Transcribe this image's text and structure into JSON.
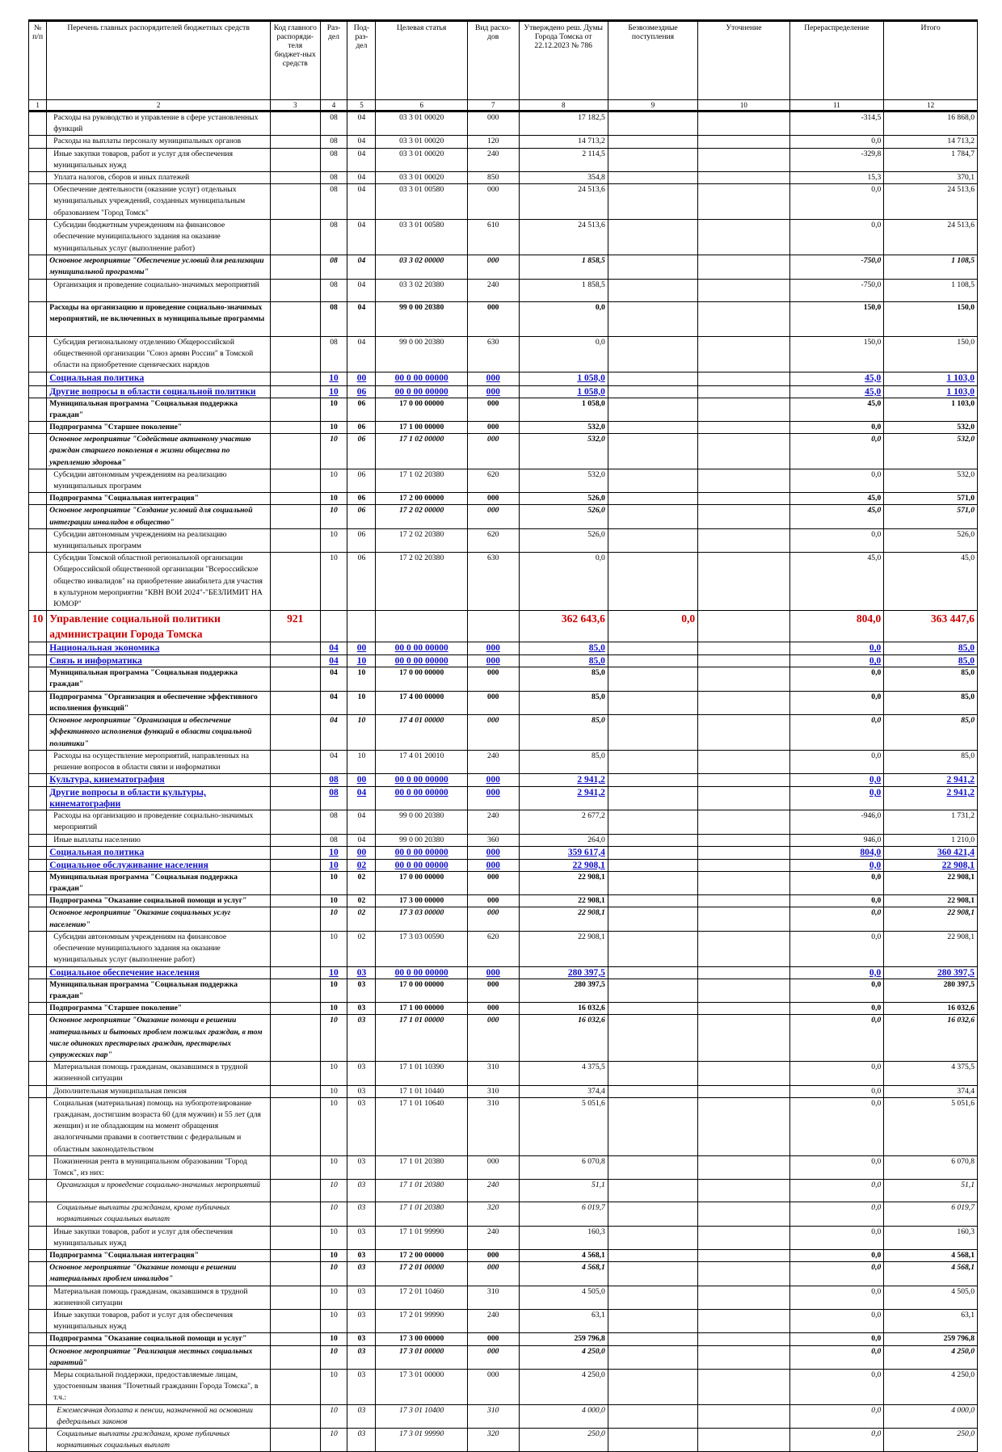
{
  "header": [
    "№ п/п",
    "Перечень главных распорядителей бюджетных средств",
    "Код главного распоряди-теля бюджет-ных средств",
    "Раз-дел",
    "Под-раз-дел",
    "Целевая статья",
    "Вид расхо-дов",
    "Утверждено реш. Думы Города Томска от 22.12.2023 № 786",
    "Безвозмездные поступления",
    "Уточнение",
    "Перераспределение",
    "Итого"
  ],
  "col_numbers": [
    "1",
    "2",
    "3",
    "4",
    "5",
    "6",
    "7",
    "8",
    "9",
    "10",
    "11",
    "12"
  ],
  "rows": [
    {
      "s": "n",
      "h": 26,
      "name": "Расходы на руководство и управление в сфере установленных функций",
      "rz": "08",
      "prz": "04",
      "cs": "03 3 01 00020",
      "vr": "000",
      "utv": "17 182,5",
      "pere": "-314,5",
      "itog": "16 868,0"
    },
    {
      "s": "n",
      "h": 13,
      "name": "Расходы на выплаты персоналу муниципальных органов",
      "rz": "08",
      "prz": "04",
      "cs": "03 3 01 00020",
      "vr": "120",
      "utv": "14 713,2",
      "pere": "0,0",
      "itog": "14 713,2"
    },
    {
      "s": "n",
      "h": 26,
      "name": "Иные закупки товаров, работ и услуг для обеспечения муниципальных нужд",
      "rz": "08",
      "prz": "04",
      "cs": "03 3 01 00020",
      "vr": "240",
      "utv": "2 114,5",
      "pere": "-329,8",
      "itog": "1 784,7"
    },
    {
      "s": "n",
      "h": 13,
      "name": "Уплата налогов, сборов и иных платежей",
      "rz": "08",
      "prz": "04",
      "cs": "03 3 01 00020",
      "vr": "850",
      "utv": "354,8",
      "pere": "15,3",
      "itog": "370,1"
    },
    {
      "s": "n",
      "h": 43,
      "name": "Обеспечение деятельности (оказание услуг) отдельных муниципальных учреждений, созданных муниципальным образованием \"Город Томск\"",
      "rz": "08",
      "prz": "04",
      "cs": "03 3 01 00580",
      "vr": "000",
      "utv": "24 513,6",
      "pere": "0,0",
      "itog": "24 513,6"
    },
    {
      "s": "n",
      "h": 43,
      "name": "Субсидии бюджетным учреждениям на финансовое обеспечение муниципального задания на оказание муниципальных услуг (выполнение работ)",
      "rz": "08",
      "prz": "04",
      "cs": "03 3 01 00580",
      "vr": "610",
      "utv": "24 513,6",
      "pere": "0,0",
      "itog": "24 513,6"
    },
    {
      "s": "bi",
      "h": 28,
      "name": "Основное мероприятие \"Обеспечение условий для реализации муниципальной программы\"",
      "rz": "08",
      "prz": "04",
      "cs": "03 3 02 00000",
      "vr": "000",
      "utv": "1 858,5",
      "pere": "-750,0",
      "itog": "1 108,5"
    },
    {
      "s": "n",
      "h": 27,
      "name": "Организация и проведение социально-значимых мероприятий",
      "rz": "08",
      "prz": "04",
      "cs": "03 3 02 20380",
      "vr": "240",
      "utv": "1 858,5",
      "pere": "-750,0",
      "itog": "1 108,5"
    },
    {
      "s": "b",
      "h": 42,
      "name": "Расходы на организацию и проведение социально-значимых мероприятий, не включенных в муниципальные программы",
      "rz": "08",
      "prz": "04",
      "cs": "99 0 00 20380",
      "vr": "000",
      "utv": "0,0",
      "pere": "150,0",
      "itog": "150,0"
    },
    {
      "s": "n",
      "h": 43,
      "name": "Субсидия региональному отделению Общероссийской общественной организации \"Союз армян России\" в Томской области на приобретение сценических нарядов",
      "rz": "08",
      "prz": "04",
      "cs": "99 0 00 20380",
      "vr": "630",
      "utv": "0,0",
      "pere": "150,0",
      "itog": "150,0"
    },
    {
      "s": "blue",
      "h": 16,
      "name": "Социальная политика",
      "rz": "10",
      "prz": "00",
      "cs": "00 0 00 00000",
      "vr": "000",
      "utv": "1 058,0",
      "pere": "45,0",
      "itog": "1 103,0"
    },
    {
      "s": "blue",
      "h": 14,
      "name": "Другие вопросы в области социальной политики",
      "rz": "10",
      "prz": "06",
      "cs": "00 0 00 00000",
      "vr": "000",
      "utv": "1 058,0",
      "pere": "45,0",
      "itog": "1 103,0"
    },
    {
      "s": "b",
      "h": 27,
      "name": "Муниципальная программа \"Социальная поддержка граждан\"",
      "rz": "10",
      "prz": "06",
      "cs": "17 0 00 00000",
      "vr": "000",
      "utv": "1 058,0",
      "pere": "45,0",
      "itog": "1 103,0"
    },
    {
      "s": "b",
      "h": 13,
      "name": "Подпрограмма \"Старшее поколение\"",
      "rz": "10",
      "prz": "06",
      "cs": "17 1 00 00000",
      "vr": "000",
      "utv": "532,0",
      "pere": "0,0",
      "itog": "532,0"
    },
    {
      "s": "bi",
      "h": 41,
      "name": "Основное мероприятие \"Содействие активному участию граждан старшего поколения в жизни общества по укреплению здоровья\"",
      "rz": "10",
      "prz": "06",
      "cs": "17 1 02 00000",
      "vr": "000",
      "utv": "532,0",
      "pere": "0,0",
      "itog": "532,0"
    },
    {
      "s": "n",
      "h": 27,
      "name": "Субсидии автономным учреждениям на реализацию муниципальных программ",
      "rz": "10",
      "prz": "06",
      "cs": "17 1 02 20380",
      "vr": "620",
      "utv": "532,0",
      "pere": "0,0",
      "itog": "532,0"
    },
    {
      "s": "b",
      "h": 13,
      "name": "Подпрограмма \"Социальная интеграция\"",
      "rz": "10",
      "prz": "06",
      "cs": "17 2 00 00000",
      "vr": "000",
      "utv": "526,0",
      "pere": "45,0",
      "itog": "571,0"
    },
    {
      "s": "bi",
      "h": 27,
      "name": "Основное мероприятие \"Создание условий для социальной интеграции инвалидов в общество\"",
      "rz": "10",
      "prz": "06",
      "cs": "17 2 02 00000",
      "vr": "000",
      "utv": "526,0",
      "pere": "45,0",
      "itog": "571,0"
    },
    {
      "s": "n",
      "h": 27,
      "name": "Субсидии автономным учреждениям на реализацию муниципальных программ",
      "rz": "10",
      "prz": "06",
      "cs": "17 2 02 20380",
      "vr": "620",
      "utv": "526,0",
      "pere": "0,0",
      "itog": "526,0"
    },
    {
      "s": "n",
      "h": 70,
      "name": "Субсидии Томской областной региональной организации Общероссийской общественной организации \"Всероссийское общество инвалидов\" на приобретение авиабилета для участия в культурном мероприятии \"КВН ВОИ 2024\"-\"БЕЗЛИМИТ НА ЮМОР\"",
      "rz": "10",
      "prz": "06",
      "cs": "17 2 02 20380",
      "vr": "630",
      "utv": "0,0",
      "pere": "45,0",
      "itog": "45,0"
    },
    {
      "s": "red",
      "h": 38,
      "num": "10",
      "name": "Управление социальной политики администрации Города Томска",
      "code": "921",
      "rz": "",
      "prz": "",
      "cs": "",
      "vr": "",
      "utv": "362 643,6",
      "bezv": "0,0",
      "pere": "804,0",
      "itog": "363 447,6"
    },
    {
      "s": "blue",
      "h": 15,
      "name": "Национальная экономика",
      "rz": "04",
      "prz": "00",
      "cs": "00 0 00 00000",
      "vr": "000",
      "utv": "85,0",
      "pere": "0,0",
      "itog": "85,0"
    },
    {
      "s": "blue",
      "h": 13,
      "name": "Связь и информатика",
      "rz": "04",
      "prz": "10",
      "cs": "00 0 00 00000",
      "vr": "000",
      "utv": "85,0",
      "pere": "0,0",
      "itog": "85,0"
    },
    {
      "s": "b",
      "h": 28,
      "name": "Муниципальная программа \"Социальная поддержка граждан\"",
      "rz": "04",
      "prz": "10",
      "cs": "17 0 00 00000",
      "vr": "000",
      "utv": "85,0",
      "pere": "0,0",
      "itog": "85,0"
    },
    {
      "s": "b",
      "h": 28,
      "name": "Подпрограмма \"Организация и обеспечение эффективного исполнения функций\"",
      "rz": "04",
      "prz": "10",
      "cs": "17 4 00 00000",
      "vr": "000",
      "utv": "85,0",
      "pere": "0,0",
      "itog": "85,0"
    },
    {
      "s": "bi",
      "h": 41,
      "name": "Основное мероприятие \"Организация и обеспечение эффективного исполнения функций в области социальной политики\"",
      "rz": "04",
      "prz": "10",
      "cs": "17 4 01 00000",
      "vr": "000",
      "utv": "85,0",
      "pere": "0,0",
      "itog": "85,0"
    },
    {
      "s": "n",
      "h": 27,
      "name": "Расходы на осуществление мероприятий, направленных на решение вопросов в области связи и информатики",
      "rz": "04",
      "prz": "10",
      "cs": "17 4 01 20010",
      "vr": "240",
      "utv": "85,0",
      "pere": "0,0",
      "itog": "85,0"
    },
    {
      "s": "blue",
      "h": 15,
      "name": "Культура, кинематография",
      "rz": "08",
      "prz": "00",
      "cs": "00 0 00 00000",
      "vr": "000",
      "utv": "2 941,2",
      "pere": "0,0",
      "itog": "2 941,2"
    },
    {
      "s": "blue",
      "h": 13,
      "name": "Другие вопросы в области культуры, кинематографии",
      "rz": "08",
      "prz": "04",
      "cs": "00 0 00 00000",
      "vr": "000",
      "utv": "2 941,2",
      "pere": "0,0",
      "itog": "2 941,2"
    },
    {
      "s": "n",
      "h": 27,
      "name": "Расходы на организацию и проведение социально-значимых мероприятий",
      "rz": "08",
      "prz": "04",
      "cs": "99 0 00 20380",
      "vr": "240",
      "utv": "2 677,2",
      "pere": "-946,0",
      "itog": "1 731,2"
    },
    {
      "s": "n",
      "h": 13,
      "name": "Иные выплаты населению",
      "rz": "08",
      "prz": "04",
      "cs": "99 0 00 20380",
      "vr": "360",
      "utv": "264,0",
      "pere": "946,0",
      "itog": "1 210,0"
    },
    {
      "s": "blue",
      "h": 15,
      "name": "Социальная политика",
      "rz": "10",
      "prz": "00",
      "cs": "00 0 00 00000",
      "vr": "000",
      "utv": "359 617,4",
      "pere": "804,0",
      "itog": "360 421,4"
    },
    {
      "s": "blue",
      "h": 13,
      "name": "Социальное обслуживание населения",
      "rz": "10",
      "prz": "02",
      "cs": "00 0 00 00000",
      "vr": "000",
      "utv": "22 908,1",
      "pere": "0,0",
      "itog": "22 908,1"
    },
    {
      "s": "b",
      "h": 28,
      "name": "Муниципальная программа \"Социальная поддержка граждан\"",
      "rz": "10",
      "prz": "02",
      "cs": "17 0 00 00000",
      "vr": "000",
      "utv": "22 908,1",
      "pere": "0,0",
      "itog": "22 908,1"
    },
    {
      "s": "b",
      "h": 13,
      "name": "Подпрограмма \"Оказание социальной помощи и услуг\"",
      "rz": "10",
      "prz": "02",
      "cs": "17 3 00 00000",
      "vr": "000",
      "utv": "22 908,1",
      "pere": "0,0",
      "itog": "22 908,1"
    },
    {
      "s": "bi",
      "h": 28,
      "name": "Основное мероприятие \"Оказание социальных услуг населению\"",
      "rz": "10",
      "prz": "02",
      "cs": "17 3 03 00000",
      "vr": "000",
      "utv": "22 908,1",
      "pere": "0,0",
      "itog": "22 908,1"
    },
    {
      "s": "n",
      "h": 43,
      "name": "Субсидии автономным учреждениям на финансовое обеспечение муниципального задания на оказание муниципальных услуг (выполнение работ)",
      "rz": "10",
      "prz": "02",
      "cs": "17 3 03 00590",
      "vr": "620",
      "utv": "22 908,1",
      "pere": "0,0",
      "itog": "22 908,1"
    },
    {
      "s": "blue",
      "h": 14,
      "name": "Социальное обеспечение населения",
      "rz": "10",
      "prz": "03",
      "cs": "00 0 00 00000",
      "vr": "000",
      "utv": "280 397,5",
      "pere": "0,0",
      "itog": "280 397,5"
    },
    {
      "s": "b",
      "h": 27,
      "name": "Муниципальная программа \"Социальная поддержка граждан\"",
      "rz": "10",
      "prz": "03",
      "cs": "17 0 00 00000",
      "vr": "000",
      "utv": "280 397,5",
      "pere": "0,0",
      "itog": "280 397,5"
    },
    {
      "s": "b",
      "h": 13,
      "name": "Подпрограмма \"Старшее поколение\"",
      "rz": "10",
      "prz": "03",
      "cs": "17 1 00 00000",
      "vr": "000",
      "utv": "16 032,6",
      "pere": "0,0",
      "itog": "16 032,6"
    },
    {
      "s": "bi",
      "h": 56,
      "name": "Основное мероприятие \"Оказание помощи в решении материальных и бытовых проблем пожилых граждан, в том числе одиноких престарелых граждан, престарелых супружеских пар\"",
      "rz": "10",
      "prz": "03",
      "cs": "17 1 01 00000",
      "vr": "000",
      "utv": "16 032,6",
      "pere": "0,0",
      "itog": "16 032,6"
    },
    {
      "s": "n",
      "h": 27,
      "name": "Материальная помощь гражданам, оказавшимся в трудной жизненной ситуации",
      "rz": "10",
      "prz": "03",
      "cs": "17 1 01 10390",
      "vr": "310",
      "utv": "4 375,5",
      "pere": "0,0",
      "itog": "4 375,5"
    },
    {
      "s": "n",
      "h": 13,
      "name": "Дополнительная муниципальная пенсия",
      "rz": "10",
      "prz": "03",
      "cs": "17 1 01 10440",
      "vr": "310",
      "utv": "374,4",
      "pere": "0,0",
      "itog": "374,4"
    },
    {
      "s": "n",
      "h": 70,
      "name": "Социальная (материальная) помощь на зубопротезирование гражданам, достигшим возраста 60 (для мужчин) и 55 лет (для женщин) и не обладающим на момент обращения аналогичными правами в соответствии с федеральным и областным законодательством",
      "rz": "10",
      "prz": "03",
      "cs": "17 1 01 10640",
      "vr": "310",
      "utv": "5 051,6",
      "pere": "0,0",
      "itog": "5 051,6"
    },
    {
      "s": "n",
      "h": 27,
      "name": "Пожизненная рента в муниципальном образовании \"Город Томск\", из них:",
      "rz": "10",
      "prz": "03",
      "cs": "17 1 01 20380",
      "vr": "000",
      "utv": "6 070,8",
      "pere": "0,0",
      "itog": "6 070,8"
    },
    {
      "s": "i",
      "h": 27,
      "name": "Организация и проведение социально-значимых мероприятий",
      "rz": "10",
      "prz": "03",
      "cs": "17 1 01 20380",
      "vr": "240",
      "utv": "51,1",
      "pere": "0,0",
      "itog": "51,1"
    },
    {
      "s": "i",
      "h": 27,
      "name": "Социальные выплаты гражданам, кроме публичных нормативных социальных выплат",
      "rz": "10",
      "prz": "03",
      "cs": "17 1 01 20380",
      "vr": "320",
      "utv": "6 019,7",
      "pere": "0,0",
      "itog": "6 019,7"
    },
    {
      "s": "n",
      "h": 28,
      "name": "Иные закупки товаров, работ и услуг для обеспечения муниципальных нужд",
      "rz": "10",
      "prz": "03",
      "cs": "17 1 01 99990",
      "vr": "240",
      "utv": "160,3",
      "pere": "0,0",
      "itog": "160,3"
    },
    {
      "s": "b",
      "h": 13,
      "name": "Подпрограмма \"Социальная интеграция\"",
      "rz": "10",
      "prz": "03",
      "cs": "17 2 00 00000",
      "vr": "000",
      "utv": "4 568,1",
      "pere": "0,0",
      "itog": "4 568,1"
    },
    {
      "s": "bi",
      "h": 27,
      "name": "Основное мероприятие \"Оказание помощи в решении материальных проблем инвалидов\"",
      "rz": "10",
      "prz": "03",
      "cs": "17 2 01 00000",
      "vr": "000",
      "utv": "4 568,1",
      "pere": "0,0",
      "itog": "4 568,1"
    },
    {
      "s": "n",
      "h": 27,
      "name": "Материальная помощь гражданам, оказавшимся в трудной жизненной ситуации",
      "rz": "10",
      "prz": "03",
      "cs": "17 2 01 10460",
      "vr": "310",
      "utv": "4 505,0",
      "pere": "0,0",
      "itog": "4 505,0"
    },
    {
      "s": "n",
      "h": 27,
      "name": "Иные закупки товаров, работ и услуг для обеспечения муниципальных нужд",
      "rz": "10",
      "prz": "03",
      "cs": "17 2 01 99990",
      "vr": "240",
      "utv": "63,1",
      "pere": "0,0",
      "itog": "63,1"
    },
    {
      "s": "b",
      "h": 13,
      "name": "Подпрограмма \"Оказание социальной помощи и услуг\"",
      "rz": "10",
      "prz": "03",
      "cs": "17 3 00 00000",
      "vr": "000",
      "utv": "259 796,8",
      "pere": "0,0",
      "itog": "259 796,8"
    },
    {
      "s": "bi",
      "h": 27,
      "name": "Основное мероприятие \"Реализация местных социальных гарантий\"",
      "rz": "10",
      "prz": "03",
      "cs": "17 3 01 00000",
      "vr": "000",
      "utv": "4 250,0",
      "pere": "0,0",
      "itog": "4 250,0"
    },
    {
      "s": "n",
      "h": 42,
      "name": "Меры социальной поддержки, предоставляемые лицам, удостоенным звания \"Почетный гражданин Города Томска\", в т.ч.:",
      "rz": "10",
      "prz": "03",
      "cs": "17 3 01 00000",
      "vr": "000",
      "utv": "4 250,0",
      "pere": "0,0",
      "itog": "4 250,0"
    },
    {
      "s": "i",
      "h": 28,
      "name": "Ежемесячная доплата к пенсии, назначенной на основании федеральных законов",
      "rz": "10",
      "prz": "03",
      "cs": "17 3 01 10400",
      "vr": "310",
      "utv": "4 000,0",
      "pere": "0,0",
      "itog": "4 000,0"
    },
    {
      "s": "i",
      "h": 27,
      "name": "Социальные выплаты гражданам, кроме публичных нормативных социальных выплат",
      "rz": "10",
      "prz": "03",
      "cs": "17 3 01 99990",
      "vr": "320",
      "utv": "250,0",
      "pere": "0,0",
      "itog": "250,0"
    }
  ]
}
